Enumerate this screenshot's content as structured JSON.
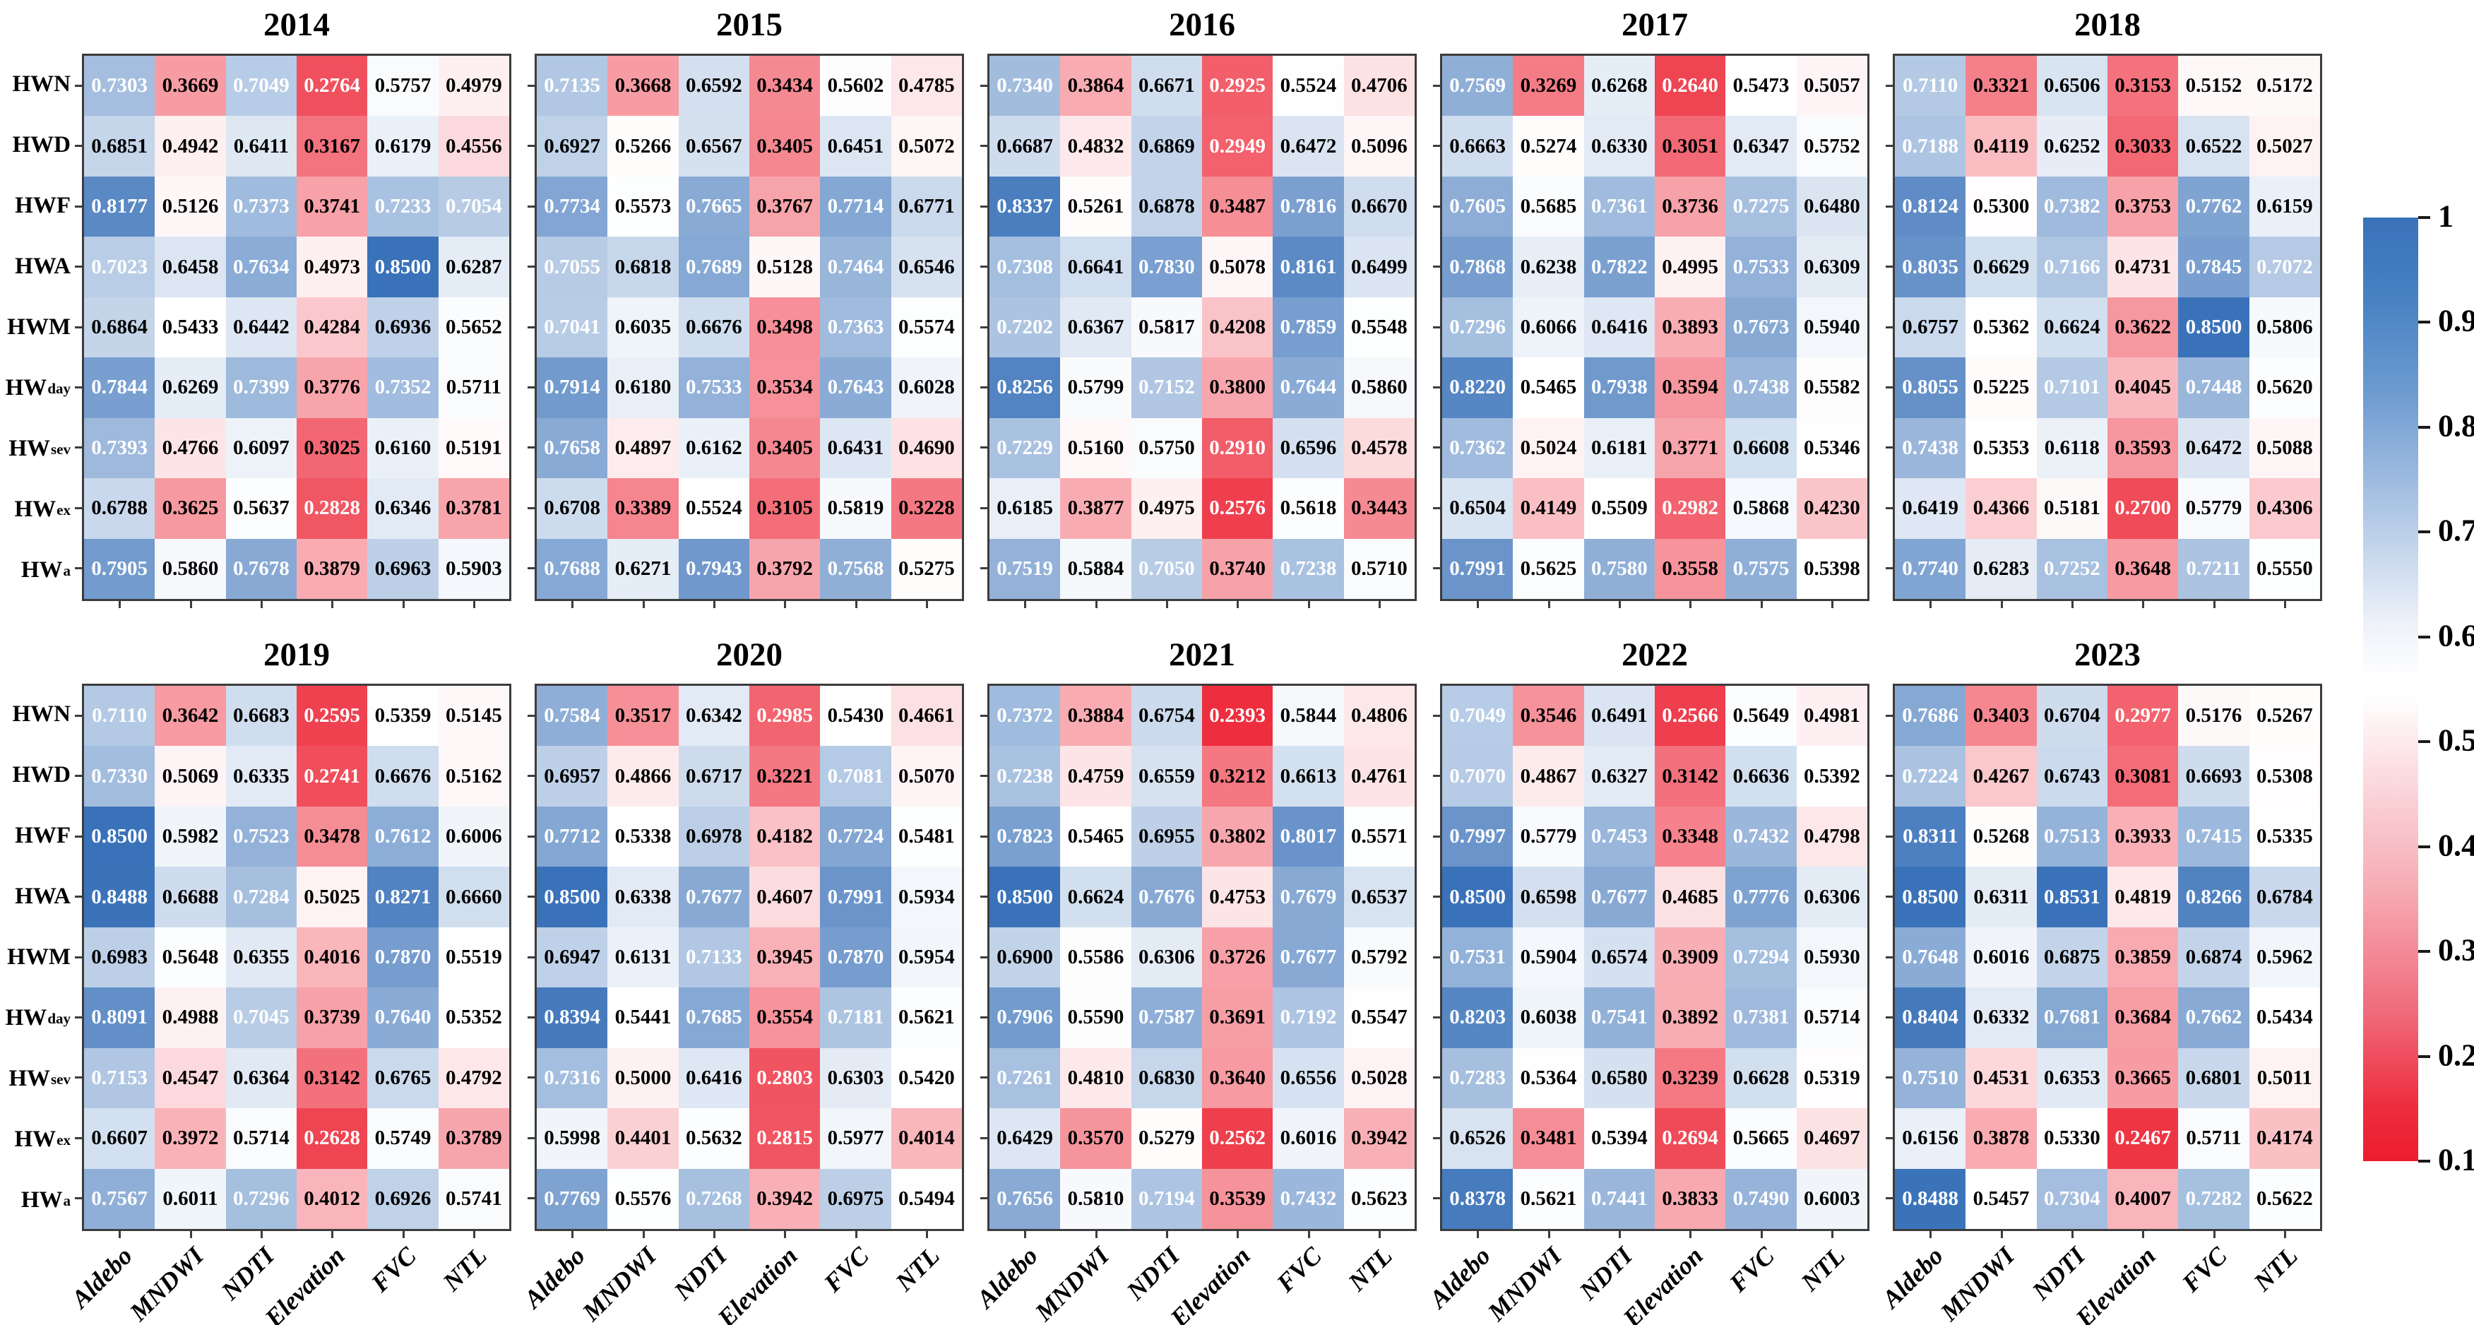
{
  "x_axis": {
    "columns": [
      "Aldebo",
      "MNDWI",
      "NDTI",
      "Elevation",
      "FVC",
      "NTL"
    ]
  },
  "y_axis": {
    "rows": [
      {
        "base": "HWN",
        "sub": ""
      },
      {
        "base": "HWD",
        "sub": ""
      },
      {
        "base": "HWF",
        "sub": ""
      },
      {
        "base": "HWA",
        "sub": ""
      },
      {
        "base": "HWM",
        "sub": ""
      },
      {
        "base": "HW",
        "sub": "day"
      },
      {
        "base": "HW",
        "sub": "sev"
      },
      {
        "base": "HW",
        "sub": "ex"
      },
      {
        "base": "HW",
        "sub": "a"
      }
    ]
  },
  "colorbar": {
    "ticks": [
      "1",
      "0.9",
      "0.8",
      "0.7",
      "0.6",
      "0.5",
      "0.4",
      "0.3",
      "0.2",
      "0.1"
    ],
    "tick_values": [
      1,
      0.9,
      0.8,
      0.7,
      0.6,
      0.5,
      0.4,
      0.3,
      0.2,
      0.1
    ],
    "blue_color": "#3a72b9",
    "white_color": "#ffffff",
    "red_color": "#ec1c2d"
  },
  "chart_data": {
    "type": "heatmap",
    "layout": "2 rows x 5 columns of yearly correlation panels, shared row/column categories, colorbar at right",
    "columns": [
      "Aldebo",
      "MNDWI",
      "NDTI",
      "Elevation",
      "FVC",
      "NTL"
    ],
    "rows": [
      "HWN",
      "HWD",
      "HWF",
      "HWA",
      "HWM",
      "HW_day",
      "HW_sev",
      "HW_ex",
      "HW_a"
    ],
    "value_range": [
      0.1,
      1
    ],
    "panels": [
      {
        "year": "2014",
        "values": [
          [
            "0.7303",
            "0.3669",
            "0.7049",
            "0.2764",
            "0.5757",
            "0.4979"
          ],
          [
            "0.6851",
            "0.4942",
            "0.6411",
            "0.3167",
            "0.6179",
            "0.4556"
          ],
          [
            "0.8177",
            "0.5126",
            "0.7373",
            "0.3741",
            "0.7233",
            "0.7054"
          ],
          [
            "0.7023",
            "0.6458",
            "0.7634",
            "0.4973",
            "0.8500",
            "0.6287"
          ],
          [
            "0.6864",
            "0.5433",
            "0.6442",
            "0.4284",
            "0.6936",
            "0.5652"
          ],
          [
            "0.7844",
            "0.6269",
            "0.7399",
            "0.3776",
            "0.7352",
            "0.5711"
          ],
          [
            "0.7393",
            "0.4766",
            "0.6097",
            "0.3025",
            "0.6160",
            "0.5191"
          ],
          [
            "0.6788",
            "0.3625",
            "0.5637",
            "0.2828",
            "0.6346",
            "0.3781"
          ],
          [
            "0.7905",
            "0.5860",
            "0.7678",
            "0.3879",
            "0.6963",
            "0.5903"
          ]
        ]
      },
      {
        "year": "2015",
        "values": [
          [
            "0.7135",
            "0.3668",
            "0.6592",
            "0.3434",
            "0.5602",
            "0.4785"
          ],
          [
            "0.6927",
            "0.5266",
            "0.6567",
            "0.3405",
            "0.6451",
            "0.5072"
          ],
          [
            "0.7734",
            "0.5573",
            "0.7665",
            "0.3767",
            "0.7714",
            "0.6771"
          ],
          [
            "0.7055",
            "0.6818",
            "0.7689",
            "0.5128",
            "0.7464",
            "0.6546"
          ],
          [
            "0.7041",
            "0.6035",
            "0.6676",
            "0.3498",
            "0.7363",
            "0.5574"
          ],
          [
            "0.7914",
            "0.6180",
            "0.7533",
            "0.3534",
            "0.7643",
            "0.6028"
          ],
          [
            "0.7658",
            "0.4897",
            "0.6162",
            "0.3405",
            "0.6431",
            "0.4690"
          ],
          [
            "0.6708",
            "0.3389",
            "0.5524",
            "0.3105",
            "0.5819",
            "0.3228"
          ],
          [
            "0.7688",
            "0.6271",
            "0.7943",
            "0.3792",
            "0.7568",
            "0.5275"
          ]
        ]
      },
      {
        "year": "2016",
        "values": [
          [
            "0.7340",
            "0.3864",
            "0.6671",
            "0.2925",
            "0.5524",
            "0.4706"
          ],
          [
            "0.6687",
            "0.4832",
            "0.6869",
            "0.2949",
            "0.6472",
            "0.5096"
          ],
          [
            "0.8337",
            "0.5261",
            "0.6878",
            "0.3487",
            "0.7816",
            "0.6670"
          ],
          [
            "0.7308",
            "0.6641",
            "0.7830",
            "0.5078",
            "0.8161",
            "0.6499"
          ],
          [
            "0.7202",
            "0.6367",
            "0.5817",
            "0.4208",
            "0.7859",
            "0.5548"
          ],
          [
            "0.8256",
            "0.5799",
            "0.7152",
            "0.3800",
            "0.7644",
            "0.5860"
          ],
          [
            "0.7229",
            "0.5160",
            "0.5750",
            "0.2910",
            "0.6596",
            "0.4578"
          ],
          [
            "0.6185",
            "0.3877",
            "0.4975",
            "0.2576",
            "0.5618",
            "0.3443"
          ],
          [
            "0.7519",
            "0.5884",
            "0.7050",
            "0.3740",
            "0.7238",
            "0.5710"
          ]
        ]
      },
      {
        "year": "2017",
        "values": [
          [
            "0.7569",
            "0.3269",
            "0.6268",
            "0.2640",
            "0.5473",
            "0.5057"
          ],
          [
            "0.6663",
            "0.5274",
            "0.6330",
            "0.3051",
            "0.6347",
            "0.5752"
          ],
          [
            "0.7605",
            "0.5685",
            "0.7361",
            "0.3736",
            "0.7275",
            "0.6480"
          ],
          [
            "0.7868",
            "0.6238",
            "0.7822",
            "0.4995",
            "0.7533",
            "0.6309"
          ],
          [
            "0.7296",
            "0.6066",
            "0.6416",
            "0.3893",
            "0.7673",
            "0.5940"
          ],
          [
            "0.8220",
            "0.5465",
            "0.7938",
            "0.3594",
            "0.7438",
            "0.5582"
          ],
          [
            "0.7362",
            "0.5024",
            "0.6181",
            "0.3771",
            "0.6608",
            "0.5346"
          ],
          [
            "0.6504",
            "0.4149",
            "0.5509",
            "0.2982",
            "0.5868",
            "0.4230"
          ],
          [
            "0.7991",
            "0.5625",
            "0.7580",
            "0.3558",
            "0.7575",
            "0.5398"
          ]
        ]
      },
      {
        "year": "2018",
        "values": [
          [
            "0.7110",
            "0.3321",
            "0.6506",
            "0.3153",
            "0.5152",
            "0.5172"
          ],
          [
            "0.7188",
            "0.4119",
            "0.6252",
            "0.3033",
            "0.6522",
            "0.5027"
          ],
          [
            "0.8124",
            "0.5300",
            "0.7382",
            "0.3753",
            "0.7762",
            "0.6159"
          ],
          [
            "0.8035",
            "0.6629",
            "0.7166",
            "0.4731",
            "0.7845",
            "0.7072"
          ],
          [
            "0.6757",
            "0.5362",
            "0.6624",
            "0.3622",
            "0.8500",
            "0.5806"
          ],
          [
            "0.8055",
            "0.5225",
            "0.7101",
            "0.4045",
            "0.7448",
            "0.5620"
          ],
          [
            "0.7438",
            "0.5353",
            "0.6118",
            "0.3593",
            "0.6472",
            "0.5088"
          ],
          [
            "0.6419",
            "0.4366",
            "0.5181",
            "0.2700",
            "0.5779",
            "0.4306"
          ],
          [
            "0.7740",
            "0.6283",
            "0.7252",
            "0.3648",
            "0.7211",
            "0.5550"
          ]
        ]
      },
      {
        "year": "2019",
        "values": [
          [
            "0.7110",
            "0.3642",
            "0.6683",
            "0.2595",
            "0.5359",
            "0.5145"
          ],
          [
            "0.7330",
            "0.5069",
            "0.6335",
            "0.2741",
            "0.6676",
            "0.5162"
          ],
          [
            "0.8500",
            "0.5982",
            "0.7523",
            "0.3478",
            "0.7612",
            "0.6006"
          ],
          [
            "0.8488",
            "0.6688",
            "0.7284",
            "0.5025",
            "0.8271",
            "0.6660"
          ],
          [
            "0.6983",
            "0.5648",
            "0.6355",
            "0.4016",
            "0.7870",
            "0.5519"
          ],
          [
            "0.8091",
            "0.4988",
            "0.7045",
            "0.3739",
            "0.7640",
            "0.5352"
          ],
          [
            "0.7153",
            "0.4547",
            "0.6364",
            "0.3142",
            "0.6765",
            "0.4792"
          ],
          [
            "0.6607",
            "0.3972",
            "0.5714",
            "0.2628",
            "0.5749",
            "0.3789"
          ],
          [
            "0.7567",
            "0.6011",
            "0.7296",
            "0.4012",
            "0.6926",
            "0.5741"
          ]
        ]
      },
      {
        "year": "2020",
        "values": [
          [
            "0.7584",
            "0.3517",
            "0.6342",
            "0.2985",
            "0.5430",
            "0.4661"
          ],
          [
            "0.6957",
            "0.4866",
            "0.6717",
            "0.3221",
            "0.7081",
            "0.5070"
          ],
          [
            "0.7712",
            "0.5338",
            "0.6978",
            "0.4182",
            "0.7724",
            "0.5481"
          ],
          [
            "0.8500",
            "0.6338",
            "0.7677",
            "0.4607",
            "0.7991",
            "0.5934"
          ],
          [
            "0.6947",
            "0.6131",
            "0.7133",
            "0.3945",
            "0.7870",
            "0.5954"
          ],
          [
            "0.8394",
            "0.5441",
            "0.7685",
            "0.3554",
            "0.7181",
            "0.5621"
          ],
          [
            "0.7316",
            "0.5000",
            "0.6416",
            "0.2803",
            "0.6303",
            "0.5420"
          ],
          [
            "0.5998",
            "0.4401",
            "0.5632",
            "0.2815",
            "0.5977",
            "0.4014"
          ],
          [
            "0.7769",
            "0.5576",
            "0.7268",
            "0.3942",
            "0.6975",
            "0.5494"
          ]
        ]
      },
      {
        "year": "2021",
        "values": [
          [
            "0.7372",
            "0.3884",
            "0.6754",
            "0.2393",
            "0.5844",
            "0.4806"
          ],
          [
            "0.7238",
            "0.4759",
            "0.6559",
            "0.3212",
            "0.6613",
            "0.4761"
          ],
          [
            "0.7823",
            "0.5465",
            "0.6955",
            "0.3802",
            "0.8017",
            "0.5571"
          ],
          [
            "0.8500",
            "0.6624",
            "0.7676",
            "0.4753",
            "0.7679",
            "0.6537"
          ],
          [
            "0.6900",
            "0.5586",
            "0.6306",
            "0.3726",
            "0.7677",
            "0.5792"
          ],
          [
            "0.7906",
            "0.5590",
            "0.7587",
            "0.3691",
            "0.7192",
            "0.5547"
          ],
          [
            "0.7261",
            "0.4810",
            "0.6830",
            "0.3640",
            "0.6556",
            "0.5028"
          ],
          [
            "0.6429",
            "0.3570",
            "0.5279",
            "0.2562",
            "0.6016",
            "0.3942"
          ],
          [
            "0.7656",
            "0.5810",
            "0.7194",
            "0.3539",
            "0.7432",
            "0.5623"
          ]
        ]
      },
      {
        "year": "2022",
        "values": [
          [
            "0.7049",
            "0.3546",
            "0.6491",
            "0.2566",
            "0.5649",
            "0.4981"
          ],
          [
            "0.7070",
            "0.4867",
            "0.6327",
            "0.3142",
            "0.6636",
            "0.5392"
          ],
          [
            "0.7997",
            "0.5779",
            "0.7453",
            "0.3348",
            "0.7432",
            "0.4798"
          ],
          [
            "0.8500",
            "0.6598",
            "0.7677",
            "0.4685",
            "0.7776",
            "0.6306"
          ],
          [
            "0.7531",
            "0.5904",
            "0.6574",
            "0.3909",
            "0.7294",
            "0.5930"
          ],
          [
            "0.8203",
            "0.6038",
            "0.7541",
            "0.3892",
            "0.7381",
            "0.5714"
          ],
          [
            "0.7283",
            "0.5364",
            "0.6580",
            "0.3239",
            "0.6628",
            "0.5319"
          ],
          [
            "0.6526",
            "0.3481",
            "0.5394",
            "0.2694",
            "0.5665",
            "0.4697"
          ],
          [
            "0.8378",
            "0.5621",
            "0.7441",
            "0.3833",
            "0.7490",
            "0.6003"
          ]
        ]
      },
      {
        "year": "2023",
        "values": [
          [
            "0.7686",
            "0.3403",
            "0.6704",
            "0.2977",
            "0.5176",
            "0.5267"
          ],
          [
            "0.7224",
            "0.4267",
            "0.6743",
            "0.3081",
            "0.6693",
            "0.5308"
          ],
          [
            "0.8311",
            "0.5268",
            "0.7513",
            "0.3933",
            "0.7415",
            "0.5335"
          ],
          [
            "0.8500",
            "0.6311",
            "0.8531",
            "0.4819",
            "0.8266",
            "0.6784"
          ],
          [
            "0.7648",
            "0.6016",
            "0.6875",
            "0.3859",
            "0.6874",
            "0.5962"
          ],
          [
            "0.8404",
            "0.6332",
            "0.7681",
            "0.3684",
            "0.7662",
            "0.5434"
          ],
          [
            "0.7510",
            "0.4531",
            "0.6353",
            "0.3665",
            "0.6801",
            "0.5011"
          ],
          [
            "0.6156",
            "0.3878",
            "0.5330",
            "0.2467",
            "0.5711",
            "0.4174"
          ],
          [
            "0.8488",
            "0.5457",
            "0.7304",
            "0.4007",
            "0.7282",
            "0.5622"
          ]
        ]
      }
    ]
  }
}
